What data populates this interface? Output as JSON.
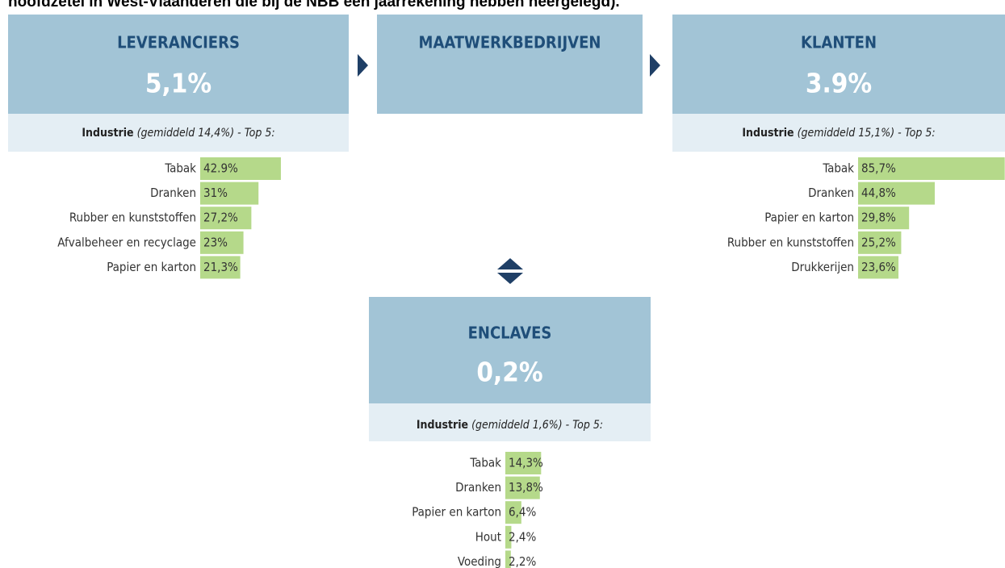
{
  "header": "hoofdzetel in West-Vlaanderen die bij de NBB een jaarrekening hebben neergelegd).",
  "panels": [
    {
      "title": "LEVERANCIERS",
      "value": "5,1%",
      "subtitle_bold": "Industrie",
      "subtitle_italic": "(gemiddeld 14,4%) - Top 5:",
      "labels": [
        "Tabak",
        "Dranken",
        "Rubber en kunststoffen",
        "Afvalbeheer en recyclage",
        "Papier en karton"
      ],
      "values": [
        42.9,
        31,
        27.2,
        23,
        21.3
      ],
      "value_labels": [
        "42.9%",
        "31%",
        "27,2%",
        "23%",
        "21,3%"
      ]
    },
    {
      "title": "MAATWERKBEDRIJVEN"
    },
    {
      "title": "KLANTEN",
      "value": "3.9%",
      "subtitle_bold": "Industrie",
      "subtitle_italic": "(gemiddeld 15,1%) - Top 5:",
      "labels": [
        "Tabak",
        "Dranken",
        "Papier en karton",
        "Rubber en kunststoffen",
        "Drukkerijen"
      ],
      "values": [
        85.7,
        44.8,
        29.8,
        25.2,
        23.6
      ],
      "value_labels": [
        "85,7%",
        "44,8%",
        "29,8%",
        "25,2%",
        "23,6%"
      ]
    },
    {
      "title": "ENCLAVES",
      "value": "0,2%",
      "subtitle_bold": "Industrie",
      "subtitle_italic": "(gemiddeld 1,6%) - Top 5:",
      "labels": [
        "Tabak",
        "Dranken",
        "Papier en karton",
        "Hout",
        "Voeding"
      ],
      "values": [
        14.3,
        13.8,
        6.4,
        2.4,
        2.2
      ],
      "value_labels": [
        "14,3%",
        "13,8%",
        "6,4%",
        "2,4%",
        "2,2%"
      ]
    }
  ],
  "bar_color": "#b5d98a"
}
